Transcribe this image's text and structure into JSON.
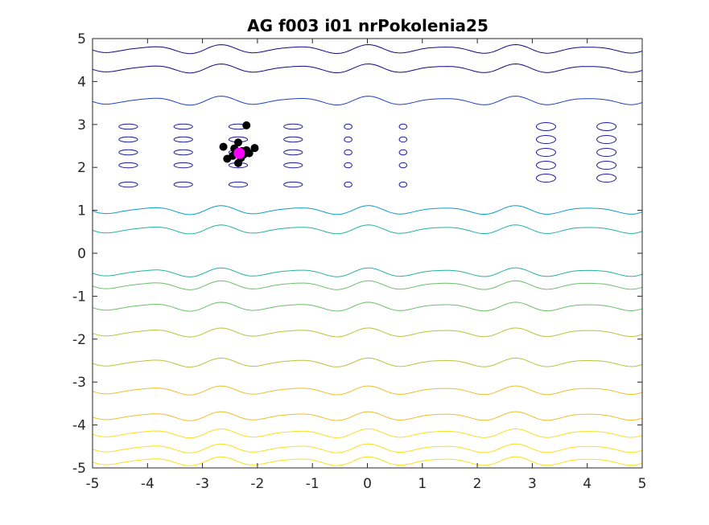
{
  "chart_data": {
    "type": "contour",
    "title": "AG f003 i01 nrPokolenia25",
    "xlabel": "",
    "ylabel": "",
    "xlim": [
      -5,
      5
    ],
    "ylim": [
      -5,
      5
    ],
    "x_ticks": [
      -5,
      -4,
      -3,
      -2,
      -1,
      0,
      1,
      2,
      3,
      4,
      5
    ],
    "y_ticks": [
      -5,
      -4,
      -3,
      -2,
      -1,
      0,
      1,
      2,
      3,
      4,
      5
    ],
    "x_tick_labels": [
      "-5",
      "-4",
      "-3",
      "-2",
      "-1",
      "0",
      "1",
      "2",
      "3",
      "4",
      "5"
    ],
    "y_tick_labels": [
      "-5",
      "-4",
      "-3",
      "-2",
      "-1",
      "0",
      "1",
      "2",
      "3",
      "4",
      "5"
    ],
    "grid": false,
    "colormap": [
      "#0d0887",
      "#1f3fc4",
      "#1673d4",
      "#0c9cc6",
      "#22b3a0",
      "#6cbf6a",
      "#b8c43a",
      "#eebf2a",
      "#f9e01a"
    ],
    "contour_levels_y": [
      4.75,
      4.3,
      3.55,
      1.0,
      0.55,
      -0.45,
      -0.75,
      -1.25,
      -1.85,
      -2.55,
      -3.2,
      -3.8,
      -4.2,
      -4.55,
      -4.85
    ],
    "population_points": [
      {
        "x": -2.32,
        "y": 2.32
      },
      {
        "x": -2.38,
        "y": 2.36
      },
      {
        "x": -2.25,
        "y": 2.3
      },
      {
        "x": -2.2,
        "y": 2.4
      },
      {
        "x": -2.42,
        "y": 2.44
      },
      {
        "x": -2.3,
        "y": 2.22
      },
      {
        "x": -2.15,
        "y": 2.33
      },
      {
        "x": -2.45,
        "y": 2.27
      },
      {
        "x": -2.35,
        "y": 2.58
      },
      {
        "x": -2.62,
        "y": 2.48
      },
      {
        "x": -2.55,
        "y": 2.2
      },
      {
        "x": -2.05,
        "y": 2.45
      },
      {
        "x": -2.2,
        "y": 2.98
      },
      {
        "x": -2.35,
        "y": 2.1
      },
      {
        "x": -2.28,
        "y": 2.38
      }
    ],
    "best_point": {
      "x": -2.33,
      "y": 2.33
    },
    "population_color": "#000000",
    "best_color": "#ff00ff"
  }
}
